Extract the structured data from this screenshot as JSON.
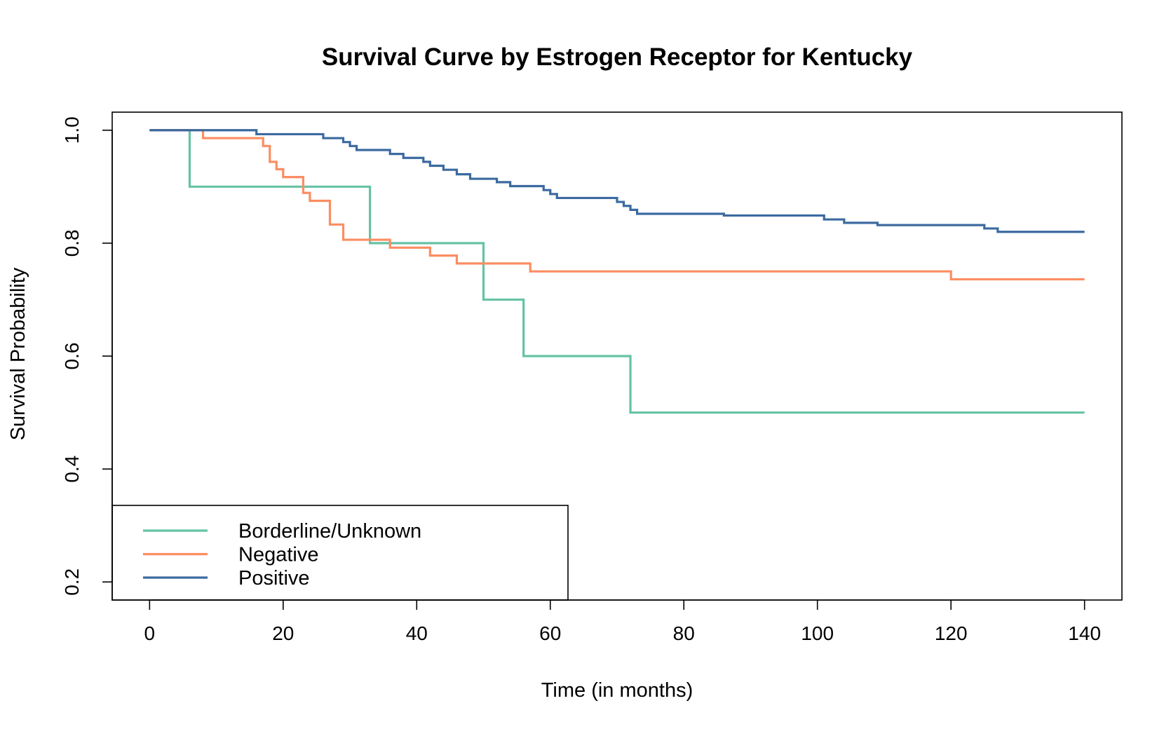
{
  "chart_data": {
    "type": "line",
    "step": true,
    "title": "Survival Curve by Estrogen Receptor for Kentucky",
    "xlabel": "Time (in months)",
    "ylabel": "Survival Probability",
    "xlim": [
      -5.6,
      145.6
    ],
    "ylim": [
      0.168,
      1.032
    ],
    "xticks": [
      0,
      20,
      40,
      60,
      80,
      100,
      120,
      140
    ],
    "yticks": [
      0.2,
      0.4,
      0.6,
      0.8,
      1.0
    ],
    "ytick_labels": [
      "0.2",
      "0.4",
      "0.6",
      "0.8",
      "1.0"
    ],
    "legend_position": "bottom-left",
    "series": [
      {
        "name": "Borderline/Unknown",
        "color": "#66C2A5",
        "x": [
          0,
          6,
          33,
          50,
          56,
          72,
          140
        ],
        "y": [
          1.0,
          0.9,
          0.8,
          0.7,
          0.6,
          0.5,
          0.5
        ]
      },
      {
        "name": "Negative",
        "color": "#FC8D62",
        "x": [
          0,
          8,
          17,
          18,
          19,
          20,
          23,
          24,
          27,
          29,
          36,
          42,
          46,
          57,
          120,
          140
        ],
        "y": [
          1.0,
          0.986,
          0.972,
          0.944,
          0.931,
          0.917,
          0.889,
          0.875,
          0.833,
          0.806,
          0.792,
          0.778,
          0.764,
          0.75,
          0.736,
          0.736
        ]
      },
      {
        "name": "Positive",
        "color": "#3B6AA0",
        "x": [
          0,
          16,
          26,
          29,
          30,
          31,
          33,
          36,
          38,
          39,
          41,
          42,
          44,
          46,
          48,
          52,
          54,
          59,
          60,
          61,
          70,
          71,
          72,
          73,
          86,
          101,
          104,
          109,
          125,
          127,
          140
        ],
        "y": [
          1.0,
          0.993,
          0.986,
          0.979,
          0.972,
          0.965,
          0.965,
          0.958,
          0.951,
          0.951,
          0.944,
          0.937,
          0.93,
          0.922,
          0.914,
          0.908,
          0.901,
          0.894,
          0.887,
          0.88,
          0.873,
          0.866,
          0.859,
          0.852,
          0.849,
          0.842,
          0.836,
          0.832,
          0.826,
          0.82,
          0.82
        ]
      }
    ]
  }
}
